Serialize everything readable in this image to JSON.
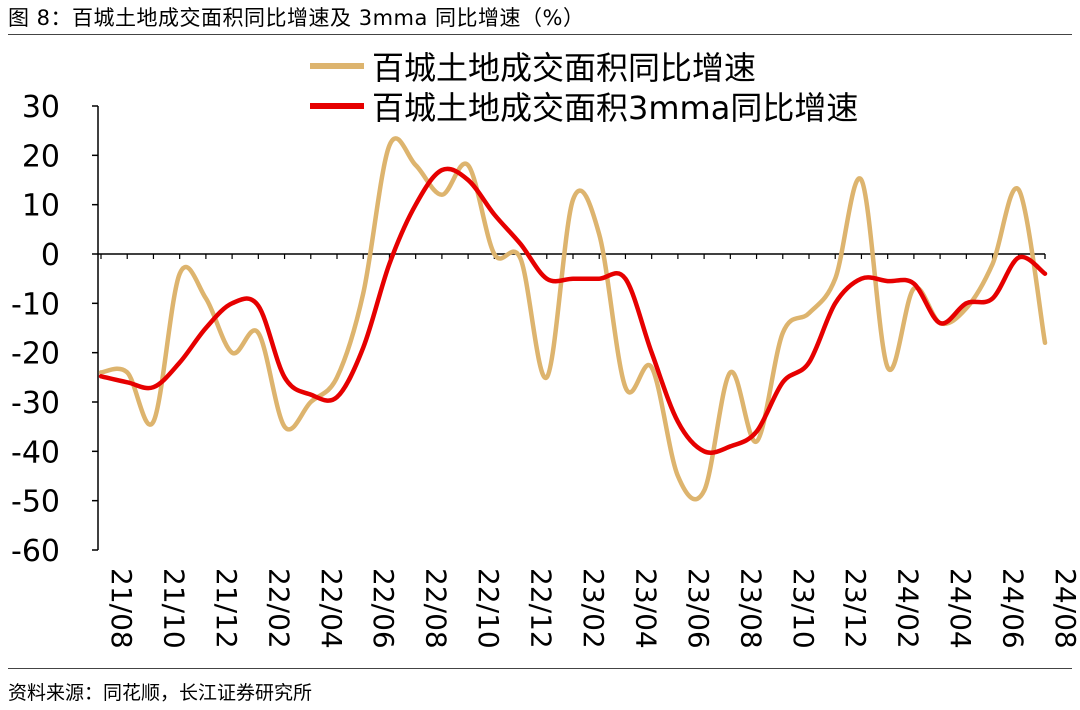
{
  "header": {
    "title": "图 8：百城土地成交面积同比增速及 3mma 同比增速（%）"
  },
  "footer": {
    "source": "资料来源：同花顺，长江证券研究所"
  },
  "colors": {
    "series1": "#DDB46E",
    "series2": "#E60000"
  },
  "chart_data": {
    "type": "line",
    "title": "图 8：百城土地成交面积同比增速及 3mma 同比增速（%）",
    "xlabel": "",
    "ylabel": "",
    "ylim": [
      -60,
      30
    ],
    "yticks": [
      30,
      20,
      10,
      0,
      -10,
      -20,
      -30,
      -40,
      -50,
      -60
    ],
    "x_tick_labels": [
      "21/08",
      "21/10",
      "21/12",
      "22/02",
      "22/04",
      "22/06",
      "22/08",
      "22/10",
      "22/12",
      "23/02",
      "23/04",
      "23/06",
      "23/08",
      "23/10",
      "23/12",
      "24/02",
      "24/04",
      "24/06",
      "24/08"
    ],
    "x": [
      "21/08",
      "21/09",
      "21/10",
      "21/11",
      "21/12",
      "22/01",
      "22/02",
      "22/03",
      "22/04",
      "22/05",
      "22/06",
      "22/07",
      "22/08",
      "22/09",
      "22/10",
      "22/11",
      "22/12",
      "23/01",
      "23/02",
      "23/03",
      "23/04",
      "23/05",
      "23/06",
      "23/07",
      "23/08",
      "23/09",
      "23/10",
      "23/11",
      "23/12",
      "24/01",
      "24/02",
      "24/03",
      "24/04",
      "24/05",
      "24/06",
      "24/07",
      "24/08"
    ],
    "legend_position": "top",
    "grid": false,
    "series": [
      {
        "name": "百城土地成交面积同比增速",
        "values": [
          -24,
          -24,
          -34,
          -4,
          -9,
          -20,
          -16,
          -35,
          -30,
          -25,
          -8,
          22,
          18,
          12,
          18,
          0,
          -1,
          -25,
          11,
          4,
          -27,
          -23,
          -45,
          -48,
          -24,
          -38,
          -16,
          -12,
          -5,
          15,
          -23,
          -7,
          -14,
          -11,
          -2,
          13,
          -18
        ]
      },
      {
        "name": "百城土地成交面积3mma同比增速",
        "values": [
          -24.8,
          -26,
          -27,
          -22,
          -15,
          -10,
          -10.5,
          -25,
          -28.5,
          -29,
          -19,
          -2,
          10,
          17,
          15,
          8,
          2,
          -5,
          -5,
          -5,
          -5,
          -20,
          -34,
          -40,
          -39,
          -36,
          -26,
          -22,
          -10,
          -5,
          -5.5,
          -6,
          -14,
          -10,
          -9,
          -0.7,
          -4
        ]
      }
    ]
  }
}
